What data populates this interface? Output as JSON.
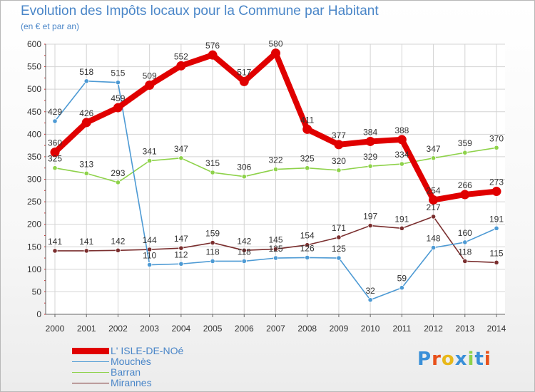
{
  "chart_data": {
    "type": "line",
    "title": "Evolution des Impôts locaux pour la Commune par Habitant",
    "subtitle": "(en € et par an)",
    "xlabel": "",
    "ylabel": "",
    "ylim": [
      0,
      600
    ],
    "yticks": [
      0,
      50,
      100,
      150,
      200,
      250,
      300,
      350,
      400,
      450,
      500,
      550,
      600
    ],
    "grid": true,
    "legend_position": "bottom-left",
    "categories": [
      "2000",
      "2001",
      "2002",
      "2003",
      "2004",
      "2005",
      "2006",
      "2007",
      "2008",
      "2009",
      "2010",
      "2011",
      "2012",
      "2013",
      "2014"
    ],
    "series": [
      {
        "name": "L' ISLE-DE-NOé",
        "color": "#e00000",
        "values": [
          360,
          426,
          459,
          509,
          552,
          576,
          517,
          580,
          411,
          377,
          384,
          388,
          254,
          266,
          273
        ]
      },
      {
        "name": "Mouchès",
        "color": "#4d9ad4",
        "values": [
          429,
          518,
          515,
          110,
          112,
          118,
          118,
          125,
          126,
          125,
          32,
          59,
          148,
          160,
          191
        ]
      },
      {
        "name": "Barran",
        "color": "#8ed24a",
        "values": [
          325,
          313,
          293,
          341,
          347,
          315,
          306,
          322,
          325,
          320,
          329,
          334,
          347,
          359,
          370
        ]
      },
      {
        "name": "Mirannes",
        "color": "#7a2e2e",
        "values": [
          141,
          141,
          142,
          144,
          147,
          159,
          142,
          145,
          154,
          171,
          197,
          191,
          217,
          118,
          115
        ]
      }
    ]
  },
  "logo": {
    "text": "Proxiti",
    "colors": [
      "#3a8fd8",
      "#e8501a",
      "#e8b81a",
      "#3a8fd8",
      "#8ed24a",
      "#3a8fd8",
      "#e8501a"
    ]
  }
}
